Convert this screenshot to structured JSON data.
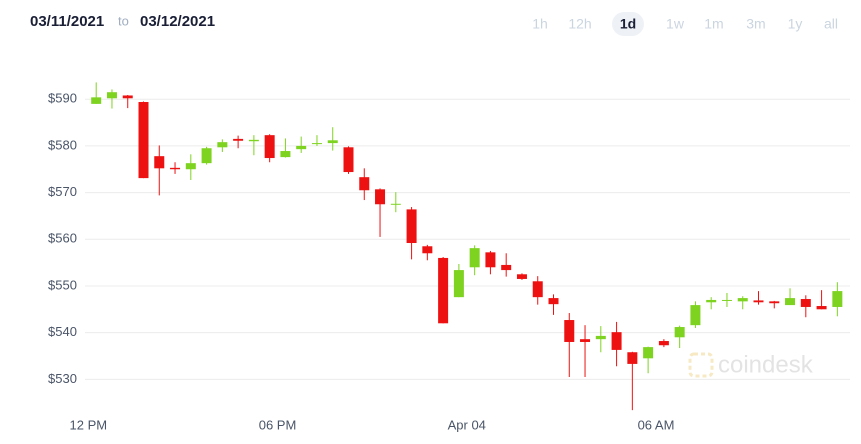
{
  "header": {
    "from": "03/11/2021",
    "separator": "to",
    "to": "03/12/2021"
  },
  "ranges": [
    "1h",
    "12h",
    "1d",
    "1w",
    "1m",
    "3m",
    "1y",
    "all"
  ],
  "selected_range": "1d",
  "watermark": "coindesk",
  "chart_data": {
    "type": "candlestick",
    "x": [
      0.25,
      0.75,
      1.25,
      1.75,
      2.25,
      2.75,
      3.25,
      3.75,
      4.25,
      4.75,
      5.25,
      5.75,
      6.25,
      6.75,
      7.25,
      7.75,
      8.25,
      8.75,
      9.25,
      9.75,
      10.25,
      10.75,
      11.25,
      11.75,
      12.25,
      12.75,
      13.25,
      13.75,
      14.25,
      14.75,
      15.25,
      15.75,
      16.25,
      16.75,
      17.25,
      17.75,
      18.25,
      18.75,
      19.25,
      19.75,
      20.25,
      20.75,
      21.25,
      21.75,
      22.25,
      22.75,
      23.25,
      23.75
    ],
    "open": [
      589.0,
      590.2,
      590.8,
      589.4,
      577.8,
      575.3,
      575.0,
      576.3,
      579.7,
      581.5,
      581.0,
      582.3,
      577.6,
      579.3,
      580.5,
      580.6,
      579.7,
      573.3,
      570.7,
      567.5,
      566.4,
      558.5,
      556.0,
      547.6,
      554.0,
      557.2,
      554.5,
      552.5,
      551.0,
      547.4,
      542.7,
      538.6,
      538.6,
      540.1,
      535.8,
      534.5,
      538.2,
      539.0,
      541.6,
      546.5,
      546.8,
      546.7,
      546.9,
      546.7,
      545.9,
      547.2,
      545.7,
      545.5
    ],
    "high": [
      593.6,
      592.1,
      590.9,
      589.5,
      580.1,
      576.5,
      578.2,
      579.8,
      581.4,
      582.2,
      582.3,
      582.5,
      581.6,
      582.0,
      582.3,
      584.0,
      579.9,
      575.2,
      570.9,
      570.1,
      566.9,
      558.8,
      556.2,
      554.7,
      558.7,
      557.5,
      557.0,
      552.7,
      552.1,
      548.2,
      544.2,
      541.6,
      541.4,
      542.3,
      535.9,
      537.0,
      538.6,
      541.5,
      546.7,
      547.6,
      548.5,
      547.8,
      548.9,
      546.8,
      549.5,
      548.0,
      549.1,
      550.8
    ],
    "low": [
      589.0,
      588.0,
      588.1,
      573.1,
      569.4,
      574.0,
      572.7,
      576.0,
      578.7,
      579.5,
      578.0,
      576.5,
      577.5,
      578.5,
      580.0,
      579.0,
      574.0,
      568.4,
      560.5,
      565.8,
      555.7,
      555.5,
      542.0,
      547.6,
      552.3,
      552.5,
      552.0,
      551.3,
      546.0,
      543.8,
      530.5,
      530.5,
      535.8,
      532.8,
      523.4,
      531.3,
      536.9,
      536.7,
      541.0,
      545.0,
      545.5,
      545.0,
      546.0,
      545.2,
      546.0,
      543.3,
      545.0,
      543.5
    ],
    "close": [
      590.4,
      591.5,
      590.2,
      573.1,
      575.2,
      575.0,
      576.3,
      579.5,
      580.8,
      581.1,
      581.3,
      577.4,
      578.9,
      580.0,
      580.6,
      581.2,
      574.4,
      570.5,
      567.5,
      567.6,
      559.2,
      557.0,
      542.0,
      553.4,
      558.1,
      554.0,
      553.4,
      551.5,
      547.6,
      546.1,
      538.0,
      538.0,
      539.3,
      536.3,
      533.3,
      536.9,
      537.3,
      541.2,
      545.9,
      547.0,
      547.0,
      547.4,
      546.5,
      546.3,
      547.4,
      545.5,
      545.0,
      548.9
    ],
    "up_color": "#7ed321",
    "down_color": "#ee1111",
    "xlim": [
      -2.8,
      24.5
    ],
    "xticks": [
      {
        "value": 0,
        "label": "12 PM"
      },
      {
        "value": 6,
        "label": "06 PM"
      },
      {
        "value": 12,
        "label": "Apr 04"
      },
      {
        "value": 18,
        "label": "06 AM"
      }
    ],
    "ylim": [
      523,
      598.4
    ],
    "yticks": [
      {
        "value": 530,
        "label": "$530"
      },
      {
        "value": 540,
        "label": "$540"
      },
      {
        "value": 550,
        "label": "$550"
      },
      {
        "value": 560,
        "label": "$560"
      },
      {
        "value": 570,
        "label": "$570"
      },
      {
        "value": 580,
        "label": "$580"
      },
      {
        "value": 590,
        "label": "$590"
      }
    ],
    "grid": true
  }
}
